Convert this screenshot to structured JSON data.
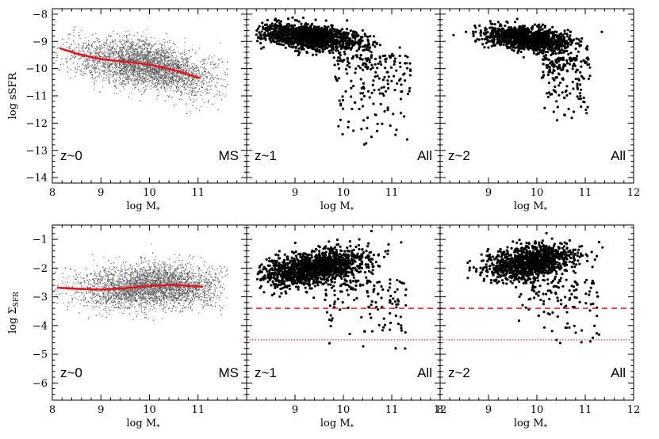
{
  "figure": {
    "panel_layout": "2 rows x 3 columns, shared axes",
    "colors": {
      "frame": "#000000",
      "points_local": "#555555",
      "points_highz": "#000000",
      "median_line": "#e8141c",
      "threshold_line": "#e8141c"
    }
  },
  "chart_data": [
    {
      "type": "scatter",
      "row": "top",
      "ylabel": "log sSFR",
      "ylim": [
        -14.2,
        -7.8
      ],
      "yticks": [
        -8,
        -9,
        -10,
        -11,
        -12,
        -13,
        -14
      ],
      "panels": [
        {
          "id": "top-z0",
          "redshift_label": "z~0",
          "sample_label": "MS",
          "xlabel": "log M*",
          "xlim": [
            8,
            12
          ],
          "xticks": [
            8,
            9,
            10,
            11
          ],
          "point_style": "dense grey density cloud",
          "cloud_center": [
            9.9,
            -9.85
          ],
          "median_line": {
            "x": [
              8.15,
              8.5,
              9.0,
              9.5,
              10.0,
              10.5,
              11.05
            ],
            "y": [
              -9.25,
              -9.45,
              -9.65,
              -9.75,
              -9.85,
              -10.05,
              -10.35
            ]
          }
        },
        {
          "id": "top-z1",
          "redshift_label": "z~1",
          "sample_label": "All",
          "xlabel": "log M*",
          "xlim": [
            8,
            12
          ],
          "xticks": [
            9,
            10,
            11
          ],
          "point_style": "black dots",
          "main_sequence_center": [
            9.3,
            -8.85
          ],
          "tail": {
            "x_range": [
              9.8,
              11.4
            ],
            "y_range": [
              -9.5,
              -12.6
            ]
          }
        },
        {
          "id": "top-z2",
          "redshift_label": "z~2",
          "sample_label": "All",
          "xlabel": "log M*",
          "xlim": [
            8,
            12
          ],
          "xticks": [
            9,
            10,
            11,
            12
          ],
          "point_style": "black dots",
          "main_sequence_center": [
            9.8,
            -8.9
          ],
          "tail": {
            "x_range": [
              10.1,
              11.1
            ],
            "y_range": [
              -9.6,
              -11.7
            ]
          }
        }
      ]
    },
    {
      "type": "scatter",
      "row": "bottom",
      "ylabel": "log ΣSFR",
      "ylim": [
        -6.6,
        -0.5
      ],
      "yticks": [
        -1,
        -2,
        -3,
        -4,
        -5,
        -6
      ],
      "panels": [
        {
          "id": "bottom-z0",
          "redshift_label": "z~0",
          "sample_label": "MS",
          "xlabel": "log M*",
          "xlim": [
            8,
            12
          ],
          "xticks": [
            8,
            9,
            10,
            11
          ],
          "point_style": "dense grey density cloud",
          "cloud_center": [
            10.0,
            -2.6
          ],
          "median_line": {
            "x": [
              8.1,
              8.5,
              9.0,
              9.5,
              10.0,
              10.5,
              11.1
            ],
            "y": [
              -2.68,
              -2.72,
              -2.75,
              -2.7,
              -2.62,
              -2.58,
              -2.65
            ]
          }
        },
        {
          "id": "bottom-z1",
          "redshift_label": "z~1",
          "sample_label": "All",
          "xlabel": "log M*",
          "xlim": [
            8,
            12
          ],
          "xticks": [
            9,
            10,
            11,
            12
          ],
          "point_style": "black dots",
          "main_sequence_center": [
            9.4,
            -2.0
          ],
          "dashed_threshold": -3.4,
          "dotted_threshold": -4.5
        },
        {
          "id": "bottom-z2",
          "redshift_label": "z~2",
          "sample_label": "All",
          "xlabel": "log M*",
          "xlim": [
            8,
            12
          ],
          "xticks": [
            8,
            9,
            10,
            11,
            12
          ],
          "point_style": "black dots",
          "main_sequence_center": [
            9.9,
            -1.8
          ],
          "dashed_threshold": -3.4,
          "dotted_threshold": -4.5
        }
      ]
    }
  ]
}
